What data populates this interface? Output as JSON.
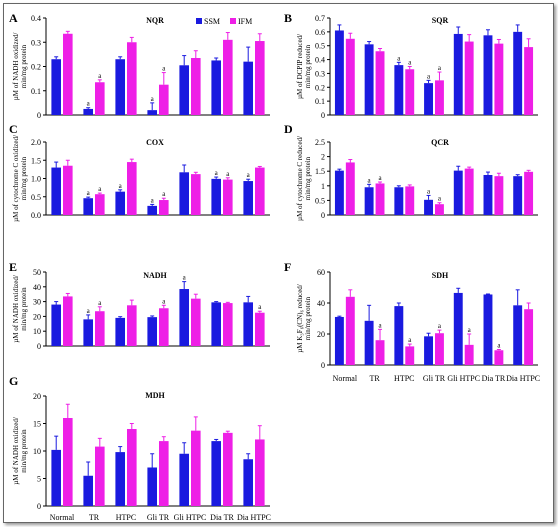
{
  "colors": {
    "ssm": "#1a1adf",
    "ifm": "#ee1fe6"
  },
  "legend": {
    "ssm": "SSM",
    "ifm": "IFM"
  },
  "categories": [
    "Normal",
    "TR",
    "HTPC",
    "Gli TR",
    "Gli HTPC",
    "Dia TR",
    "Dia HTPC"
  ],
  "chart_data": [
    {
      "panel": "A",
      "title": "NQR",
      "type": "bar",
      "ylabel": [
        "µM of NADH oxidized/",
        "min/mg protein"
      ],
      "ylim": [
        0,
        0.4
      ],
      "yticks": [
        "0",
        "0.1",
        "0.2",
        "0.3",
        "0.4"
      ],
      "series": [
        {
          "name": "SSM",
          "values": [
            0.23,
            0.025,
            0.23,
            0.02,
            0.205,
            0.225,
            0.22
          ],
          "errors": [
            0.01,
            0.005,
            0.01,
            0.03,
            0.04,
            0.01,
            0.06
          ]
        },
        {
          "name": "IFM",
          "values": [
            0.335,
            0.135,
            0.3,
            0.125,
            0.235,
            0.31,
            0.305
          ],
          "errors": [
            0.01,
            0.01,
            0.02,
            0.05,
            0.03,
            0.03,
            0.03
          ]
        }
      ],
      "sig": {
        "ssm": [
          "",
          "a",
          "",
          "a",
          "",
          "",
          ""
        ],
        "ifm": [
          "",
          "a",
          "",
          "a",
          "",
          "",
          ""
        ]
      }
    },
    {
      "panel": "B",
      "title": "SQR",
      "type": "bar",
      "ylabel": [
        "µM of DCPIP reduced/",
        "min/mg protein"
      ],
      "ylim": [
        0,
        0.7
      ],
      "yticks": [
        "0",
        "0.1",
        "0.2",
        "0.3",
        "0.4",
        "0.5",
        "0.6",
        "0.7"
      ],
      "series": [
        {
          "name": "SSM",
          "values": [
            0.61,
            0.51,
            0.36,
            0.23,
            0.585,
            0.575,
            0.6
          ],
          "errors": [
            0.04,
            0.02,
            0.02,
            0.02,
            0.05,
            0.04,
            0.05
          ]
        },
        {
          "name": "IFM",
          "values": [
            0.55,
            0.46,
            0.33,
            0.25,
            0.53,
            0.515,
            0.49
          ],
          "errors": [
            0.04,
            0.02,
            0.02,
            0.06,
            0.05,
            0.03,
            0.06
          ]
        }
      ],
      "sig": {
        "ssm": [
          "",
          "",
          "a",
          "a",
          "",
          "",
          ""
        ],
        "ifm": [
          "",
          "",
          "a",
          "a",
          "",
          "",
          ""
        ]
      }
    },
    {
      "panel": "C",
      "title": "COX",
      "type": "bar",
      "ylabel": [
        "µM of cytochrome C oxidized/",
        "min/mg protein"
      ],
      "ylim": [
        0,
        2.0
      ],
      "yticks": [
        "0.0",
        "0.5",
        "1.0",
        "1.5",
        "2.0"
      ],
      "series": [
        {
          "name": "SSM",
          "values": [
            1.3,
            0.46,
            0.64,
            0.25,
            1.17,
            0.99,
            0.93
          ],
          "errors": [
            0.15,
            0.03,
            0.05,
            0.04,
            0.2,
            0.05,
            0.05
          ]
        },
        {
          "name": "IFM",
          "values": [
            1.35,
            0.57,
            1.45,
            0.41,
            1.12,
            0.97,
            1.3
          ],
          "errors": [
            0.15,
            0.03,
            0.08,
            0.05,
            0.05,
            0.05,
            0.03
          ]
        }
      ],
      "sig": {
        "ssm": [
          "",
          "a",
          "a",
          "a",
          "",
          "a",
          "a"
        ],
        "ifm": [
          "",
          "a",
          "",
          "a",
          "",
          "a",
          ""
        ]
      }
    },
    {
      "panel": "D",
      "title": "QCR",
      "type": "bar",
      "ylabel": [
        "µM of cytochrome C reduced/",
        "min/mg protein"
      ],
      "ylim": [
        0,
        2.5
      ],
      "yticks": [
        "0",
        "0.5",
        "1",
        "1.5",
        "2",
        "2.5"
      ],
      "series": [
        {
          "name": "SSM",
          "values": [
            1.52,
            0.95,
            0.95,
            0.52,
            1.52,
            1.37,
            1.33
          ],
          "errors": [
            0.05,
            0.1,
            0.05,
            0.15,
            0.15,
            0.1,
            0.05
          ]
        },
        {
          "name": "IFM",
          "values": [
            1.8,
            1.08,
            0.98,
            0.37,
            1.59,
            1.33,
            1.48
          ],
          "errors": [
            0.1,
            0.05,
            0.05,
            0.05,
            0.05,
            0.1,
            0.05
          ]
        }
      ],
      "sig": {
        "ssm": [
          "",
          "a",
          "",
          "a",
          "",
          "",
          ""
        ],
        "ifm": [
          "",
          "a",
          "",
          "a",
          "",
          "",
          ""
        ]
      }
    },
    {
      "panel": "E",
      "title": "NADH",
      "type": "bar",
      "ylabel": [
        "µM of NADH oxidized/",
        "min/mg protein"
      ],
      "ylim": [
        0,
        50
      ],
      "yticks": [
        "0",
        "10",
        "20",
        "30",
        "40",
        "50"
      ],
      "series": [
        {
          "name": "SSM",
          "values": [
            28,
            18,
            19,
            19.5,
            38.5,
            29.5,
            29.5
          ],
          "errors": [
            2,
            3,
            0.8,
            0.8,
            5,
            0.5,
            4
          ]
        },
        {
          "name": "IFM",
          "values": [
            33.5,
            23.5,
            27.5,
            25.5,
            32,
            29,
            22.5
          ],
          "errors": [
            2,
            3,
            3.5,
            2,
            3,
            0.5,
            1
          ]
        }
      ],
      "sig": {
        "ssm": [
          "",
          "a",
          "",
          "",
          "a",
          "",
          ""
        ],
        "ifm": [
          "",
          "a",
          "",
          "a",
          "",
          "",
          "a"
        ]
      }
    },
    {
      "panel": "F",
      "title": "SDH",
      "type": "bar",
      "ylabel": [
        "µM K₃F₆(CN)₆ reduced/",
        "min/mg protein"
      ],
      "ylim": [
        0,
        60
      ],
      "yticks": [
        "0",
        "20",
        "40",
        "60"
      ],
      "series": [
        {
          "name": "SSM",
          "values": [
            31,
            28.5,
            38,
            18.5,
            46.5,
            45.5,
            38.5
          ],
          "errors": [
            0.5,
            10,
            2,
            2,
            3,
            0.3,
            10
          ]
        },
        {
          "name": "IFM",
          "values": [
            44,
            16,
            12,
            20.5,
            13,
            9.5,
            36
          ],
          "errors": [
            4.5,
            7,
            1.5,
            2,
            7,
            0.5,
            4
          ]
        }
      ],
      "sig": {
        "ssm": [
          "",
          "",
          "",
          "",
          "",
          "",
          ""
        ],
        "ifm": [
          "",
          "a",
          "a",
          "a",
          "a",
          "a",
          ""
        ]
      }
    },
    {
      "panel": "G",
      "title": "MDH",
      "type": "bar",
      "ylabel": [
        "µM of NADH oxidized/",
        "min/mg protein"
      ],
      "ylim": [
        0,
        20
      ],
      "yticks": [
        "0",
        "5",
        "10",
        "15",
        "20"
      ],
      "series": [
        {
          "name": "SSM",
          "values": [
            10.2,
            5.5,
            9.8,
            7,
            9.5,
            11.8,
            8.5
          ],
          "errors": [
            2.5,
            2.5,
            1,
            2.5,
            2,
            0.3,
            1
          ]
        },
        {
          "name": "IFM",
          "values": [
            16,
            10.8,
            14,
            11.8,
            13.7,
            13.3,
            12.1
          ],
          "errors": [
            2.5,
            1.5,
            1,
            0.8,
            2.5,
            0.3,
            2.5
          ]
        }
      ],
      "sig": {
        "ssm": [
          "",
          "",
          "",
          "",
          "",
          "",
          ""
        ],
        "ifm": [
          "",
          "",
          "",
          "",
          "",
          "",
          ""
        ]
      }
    }
  ]
}
